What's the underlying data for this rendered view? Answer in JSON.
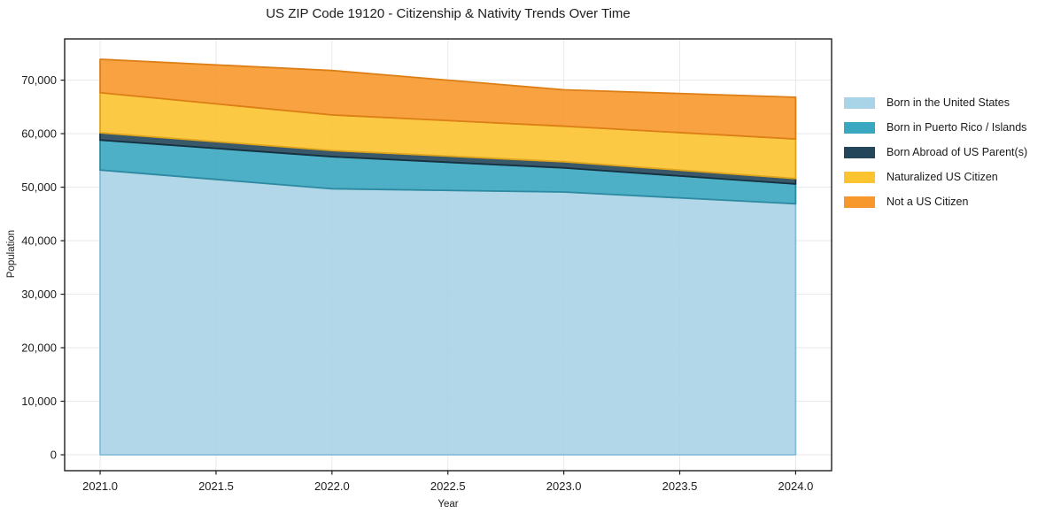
{
  "chart_data": {
    "type": "area",
    "stacked": true,
    "title": "US ZIP Code 19120 - Citizenship & Nativity Trends Over Time",
    "xlabel": "Year",
    "ylabel": "Population",
    "x": [
      2021,
      2022,
      2023,
      2024
    ],
    "series": [
      {
        "name": "Born in the United States",
        "values": [
          53200,
          49700,
          49100,
          46900
        ],
        "color": "#a9d3e6",
        "edge_color": "#86bcd6"
      },
      {
        "name": "Born in Puerto Rico / Islands",
        "values": [
          5600,
          6000,
          4500,
          3700
        ],
        "color": "#3aa7c1",
        "edge_color": "#2d8aa1"
      },
      {
        "name": "Born Abroad of US Parent(s)",
        "values": [
          1350,
          1150,
          1150,
          1000
        ],
        "color": "#24465a",
        "edge_color": "#16303f"
      },
      {
        "name": "Naturalized US Citizen",
        "values": [
          7500,
          6650,
          6650,
          7400
        ],
        "color": "#fcc331",
        "edge_color": "#dfa51c"
      },
      {
        "name": "Not a US Citizen",
        "values": [
          6250,
          8300,
          6800,
          7800
        ],
        "color": "#f7982e",
        "edge_color": "#dd7f17"
      }
    ],
    "x_ticks": [
      2021.0,
      2021.5,
      2022.0,
      2022.5,
      2023.0,
      2023.5,
      2024.0
    ],
    "x_tick_labels": [
      "2021.0",
      "2021.5",
      "2022.0",
      "2022.5",
      "2023.0",
      "2023.5",
      "2024.0"
    ],
    "y_ticks": [
      0,
      10000,
      20000,
      30000,
      40000,
      50000,
      60000,
      70000
    ],
    "y_tick_labels": [
      "0",
      "10,000",
      "20,000",
      "30,000",
      "40,000",
      "50,000",
      "60,000",
      "70,000"
    ],
    "x_range": [
      2020.847,
      2024.155
    ],
    "y_range": [
      -2976,
      77700
    ],
    "grid": true,
    "legend_position": "right-outside",
    "fill_opacity": 0.9,
    "colors": {
      "grid": "#e9e9e9",
      "spine": "#1f1f1f",
      "text": "#1c1c1c",
      "background": "#ffffff"
    }
  }
}
